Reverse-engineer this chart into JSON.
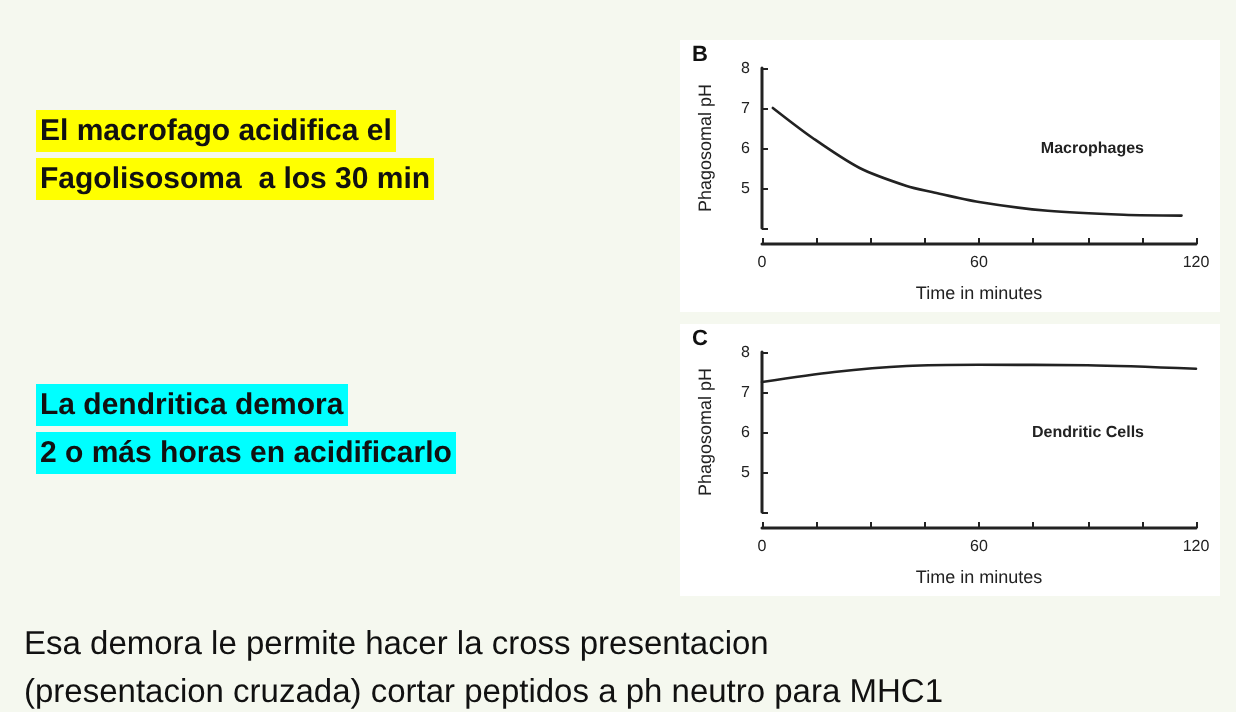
{
  "chart_data": [
    {
      "type": "line",
      "title": "B",
      "xlabel": "Time in minutes",
      "ylabel": "Phagosomal pH",
      "xlim": [
        0,
        120
      ],
      "xticks": [
        0,
        {
          "value": 15,
          "label": null
        },
        {
          "value": 30,
          "label": null
        },
        {
          "value": 45,
          "label": null
        },
        60,
        {
          "value": 75,
          "label": null
        },
        {
          "value": 90,
          "label": null
        },
        {
          "value": 105,
          "label": null
        },
        120
      ],
      "ylim": [
        4,
        8
      ],
      "yticks": [
        {
          "value": 4,
          "label": null
        },
        5,
        6,
        7,
        8
      ],
      "grid": false,
      "legend": false,
      "marker": "none",
      "line_style": "solid",
      "annotations": [
        "El macrofago acidifica el",
        "Fagolisosoma  a los 30 min"
      ],
      "series": [
        {
          "name": "Macrophages",
          "color": "#222222",
          "x": [
            3,
            14,
            27,
            40,
            47,
            60,
            79,
            100,
            116
          ],
          "values": [
            7.0,
            6.25,
            5.5,
            5.05,
            4.9,
            4.65,
            4.43,
            4.33,
            4.31
          ]
        }
      ]
    },
    {
      "type": "line",
      "title": "C",
      "xlabel": "Time in minutes",
      "ylabel": "Phagosomal pH",
      "xlim": [
        0,
        120
      ],
      "xticks": [
        0,
        {
          "value": 15,
          "label": null
        },
        {
          "value": 30,
          "label": null
        },
        {
          "value": 45,
          "label": null
        },
        60,
        {
          "value": 75,
          "label": null
        },
        {
          "value": 90,
          "label": null
        },
        {
          "value": 105,
          "label": null
        },
        120
      ],
      "ylim": [
        4,
        8
      ],
      "yticks": [
        {
          "value": 4,
          "label": null
        },
        5,
        6,
        7,
        8
      ],
      "grid": false,
      "legend": false,
      "marker": "none",
      "line_style": "solid",
      "annotations": [
        "La dendritica demora",
        "2 o más horas en acidificarlo",
        "Esa demora le permite hacer la cross presentacion",
        "(presentacion cruzada) cortar peptidos a ph neutro para MHC1"
      ],
      "series": [
        {
          "name": "Dendritic Cells",
          "color": "#222222",
          "x": [
            0,
            20,
            40,
            60,
            90,
            120
          ],
          "values": [
            7.25,
            7.5,
            7.65,
            7.68,
            7.67,
            7.58
          ]
        }
      ]
    }
  ]
}
